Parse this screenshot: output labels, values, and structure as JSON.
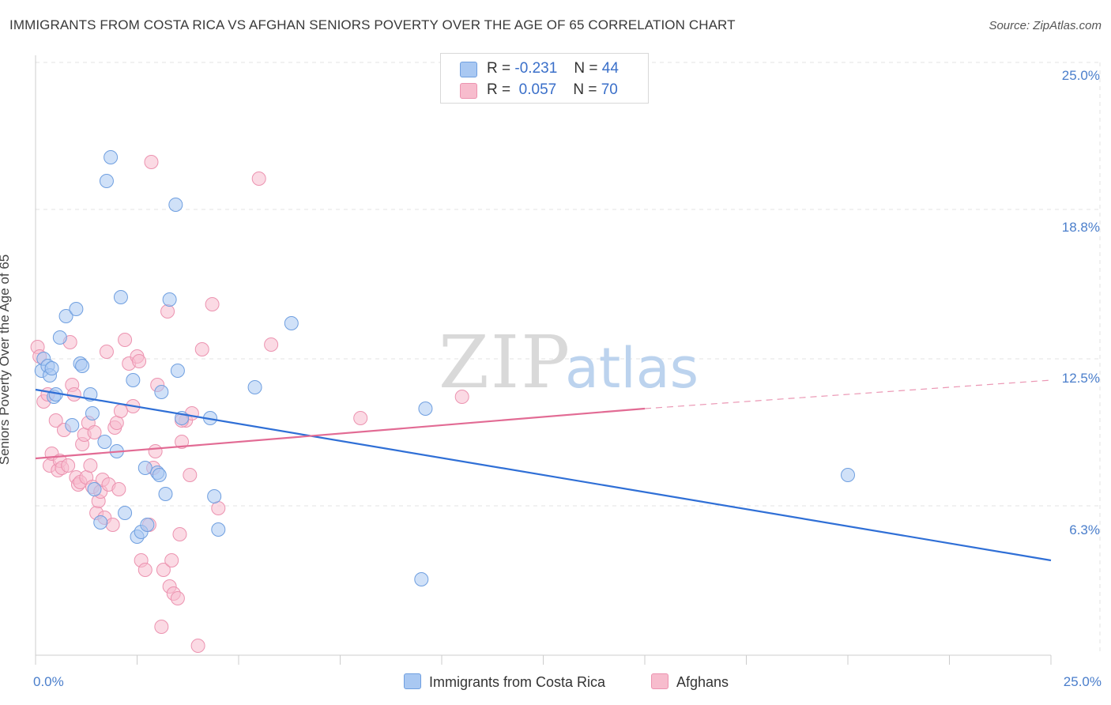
{
  "title": "IMMIGRANTS FROM COSTA RICA VS AFGHAN SENIORS POVERTY OVER THE AGE OF 65 CORRELATION CHART",
  "source": "Source: ZipAtlas.com",
  "watermark": {
    "zip": "ZIP",
    "atlas": "atlas"
  },
  "legend": {
    "series1": {
      "r_label": "R =",
      "r_value": "-0.231",
      "n_label": "N =",
      "n_value": "44"
    },
    "series2": {
      "r_label": "R =",
      "r_value": "0.057",
      "n_label": "N =",
      "n_value": "70"
    }
  },
  "bottom_legend": {
    "series1": "Immigrants from Costa Rica",
    "series2": "Afghans"
  },
  "chart_data": {
    "type": "scatter",
    "title": "IMMIGRANTS FROM COSTA RICA VS AFGHAN SENIORS POVERTY OVER THE AGE OF 65 CORRELATION CHART",
    "xlabel": "",
    "ylabel": "Seniors Poverty Over the Age of 65",
    "xlim": [
      0,
      25
    ],
    "ylim": [
      0,
      25
    ],
    "x_tick_labels": [
      "0.0%",
      "25.0%"
    ],
    "y_tick_labels": [
      "25.0%",
      "18.8%",
      "12.5%",
      "6.3%"
    ],
    "y_tick_values": [
      25.0,
      18.8,
      12.5,
      6.3
    ],
    "colors": {
      "series1_fill": "#a9c8f2",
      "series1_stroke": "#6f9fe0",
      "series1_line": "#2f6fd6",
      "series2_fill": "#f7bccd",
      "series2_stroke": "#ec93b0",
      "series2_line": "#e26b94",
      "grid": "#e3e3e3",
      "tick_text": "#4a7ecb"
    },
    "series": [
      {
        "name": "Immigrants from Costa Rica",
        "trend": {
          "x1": 0,
          "y1": 11.2,
          "x2": 25,
          "y2": 4.0
        },
        "points": [
          [
            0.15,
            12.0
          ],
          [
            0.2,
            12.5
          ],
          [
            0.3,
            12.2
          ],
          [
            0.35,
            11.8
          ],
          [
            0.4,
            12.1
          ],
          [
            0.45,
            10.9
          ],
          [
            0.5,
            11.0
          ],
          [
            0.6,
            13.4
          ],
          [
            0.75,
            14.3
          ],
          [
            0.9,
            9.7
          ],
          [
            1.0,
            14.6
          ],
          [
            1.1,
            12.3
          ],
          [
            1.15,
            12.2
          ],
          [
            1.35,
            11.0
          ],
          [
            1.4,
            10.2
          ],
          [
            1.45,
            7.0
          ],
          [
            1.6,
            5.6
          ],
          [
            1.7,
            9.0
          ],
          [
            1.75,
            20.0
          ],
          [
            1.85,
            21.0
          ],
          [
            2.0,
            8.6
          ],
          [
            2.1,
            15.1
          ],
          [
            2.2,
            6.0
          ],
          [
            2.4,
            11.6
          ],
          [
            2.5,
            5.0
          ],
          [
            2.6,
            5.2
          ],
          [
            2.7,
            7.9
          ],
          [
            2.75,
            5.5
          ],
          [
            3.0,
            7.7
          ],
          [
            3.05,
            7.6
          ],
          [
            3.1,
            11.1
          ],
          [
            3.2,
            6.8
          ],
          [
            3.3,
            15.0
          ],
          [
            3.45,
            19.0
          ],
          [
            3.5,
            12.0
          ],
          [
            3.6,
            10.0
          ],
          [
            4.3,
            10.0
          ],
          [
            4.4,
            6.7
          ],
          [
            4.5,
            5.3
          ],
          [
            5.4,
            11.3
          ],
          [
            6.3,
            14.0
          ],
          [
            9.5,
            3.2
          ],
          [
            9.6,
            10.4
          ],
          [
            20.0,
            7.6
          ]
        ]
      },
      {
        "name": "Afghans",
        "trend": {
          "x1": 0,
          "y1": 8.3,
          "x2": 15,
          "y2": 10.4
        },
        "trend_dashed": {
          "x1": 15,
          "y1": 10.4,
          "x2": 25,
          "y2": 11.6
        },
        "points": [
          [
            0.05,
            13.0
          ],
          [
            0.1,
            12.6
          ],
          [
            0.2,
            10.7
          ],
          [
            0.3,
            11.0
          ],
          [
            0.35,
            8.0
          ],
          [
            0.4,
            8.5
          ],
          [
            0.5,
            9.9
          ],
          [
            0.55,
            7.8
          ],
          [
            0.6,
            8.2
          ],
          [
            0.65,
            7.9
          ],
          [
            0.7,
            9.5
          ],
          [
            0.8,
            8.0
          ],
          [
            0.85,
            13.2
          ],
          [
            0.9,
            11.4
          ],
          [
            0.95,
            11.0
          ],
          [
            1.0,
            7.5
          ],
          [
            1.05,
            7.2
          ],
          [
            1.1,
            7.3
          ],
          [
            1.15,
            8.9
          ],
          [
            1.2,
            9.3
          ],
          [
            1.25,
            7.5
          ],
          [
            1.3,
            9.8
          ],
          [
            1.35,
            8.0
          ],
          [
            1.4,
            7.1
          ],
          [
            1.45,
            9.4
          ],
          [
            1.5,
            6.0
          ],
          [
            1.55,
            6.5
          ],
          [
            1.6,
            6.9
          ],
          [
            1.65,
            7.4
          ],
          [
            1.7,
            5.8
          ],
          [
            1.75,
            12.8
          ],
          [
            1.8,
            7.2
          ],
          [
            1.9,
            5.5
          ],
          [
            1.95,
            9.6
          ],
          [
            2.0,
            9.8
          ],
          [
            2.05,
            7.0
          ],
          [
            2.1,
            10.3
          ],
          [
            2.2,
            13.3
          ],
          [
            2.3,
            12.3
          ],
          [
            2.4,
            10.5
          ],
          [
            2.5,
            12.6
          ],
          [
            2.55,
            12.4
          ],
          [
            2.6,
            4.0
          ],
          [
            2.7,
            3.6
          ],
          [
            2.8,
            5.5
          ],
          [
            2.85,
            20.8
          ],
          [
            2.9,
            7.9
          ],
          [
            2.95,
            8.6
          ],
          [
            3.0,
            11.4
          ],
          [
            3.1,
            1.2
          ],
          [
            3.15,
            3.6
          ],
          [
            3.25,
            14.5
          ],
          [
            3.3,
            2.9
          ],
          [
            3.35,
            4.0
          ],
          [
            3.4,
            2.6
          ],
          [
            3.5,
            2.4
          ],
          [
            3.55,
            5.1
          ],
          [
            3.6,
            9.0
          ],
          [
            3.7,
            9.9
          ],
          [
            3.8,
            7.6
          ],
          [
            3.85,
            10.2
          ],
          [
            4.0,
            0.4
          ],
          [
            4.1,
            12.9
          ],
          [
            4.35,
            14.8
          ],
          [
            4.5,
            6.2
          ],
          [
            5.5,
            20.1
          ],
          [
            5.8,
            13.1
          ],
          [
            8.0,
            10.0
          ],
          [
            10.5,
            10.9
          ],
          [
            3.6,
            9.9
          ]
        ]
      }
    ]
  }
}
